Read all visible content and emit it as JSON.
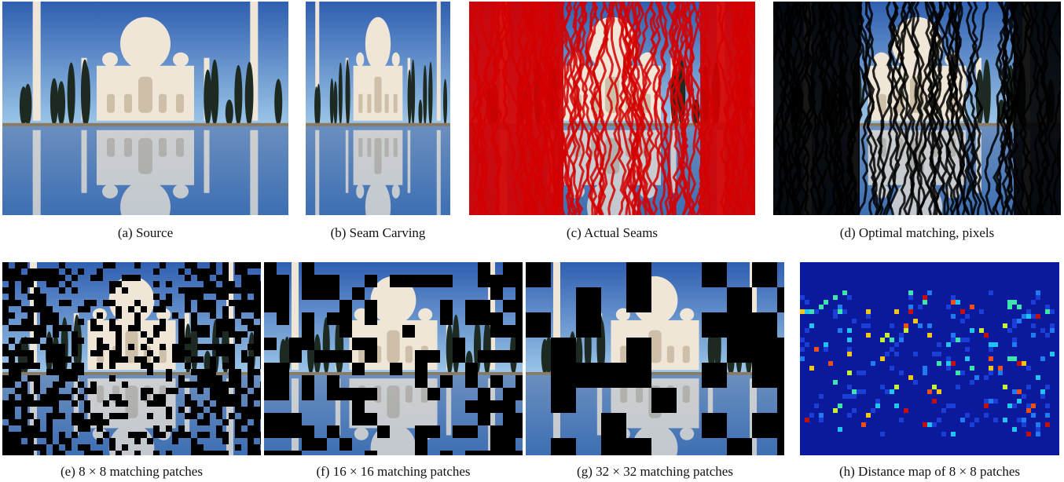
{
  "figure": {
    "panels": [
      {
        "id": "a",
        "caption": "(a)  Source"
      },
      {
        "id": "b",
        "caption": "(b)  Seam Carving"
      },
      {
        "id": "c",
        "caption": "(c)  Actual Seams"
      },
      {
        "id": "d",
        "caption": "(d)  Optimal matching, pixels"
      },
      {
        "id": "e",
        "caption": "(e)  8 × 8 matching patches"
      },
      {
        "id": "f",
        "caption": "(f)  16 × 16 matching patches"
      },
      {
        "id": "g",
        "caption": "(g)  32 × 32 matching patches"
      },
      {
        "id": "h",
        "caption": "(h)  Distance map of 8 × 8 patches"
      }
    ]
  },
  "colors": {
    "sky_top": "#2f5fb0",
    "sky_bottom": "#9cc6e8",
    "marble": "#efe6d8",
    "marble_shadow": "#cdbfa8",
    "cypress": "#1c2a22",
    "water": "#3d6fb3",
    "seam_red": "#d40000",
    "mask_black": "#000000",
    "heat_bg": "#0b1a9c"
  }
}
